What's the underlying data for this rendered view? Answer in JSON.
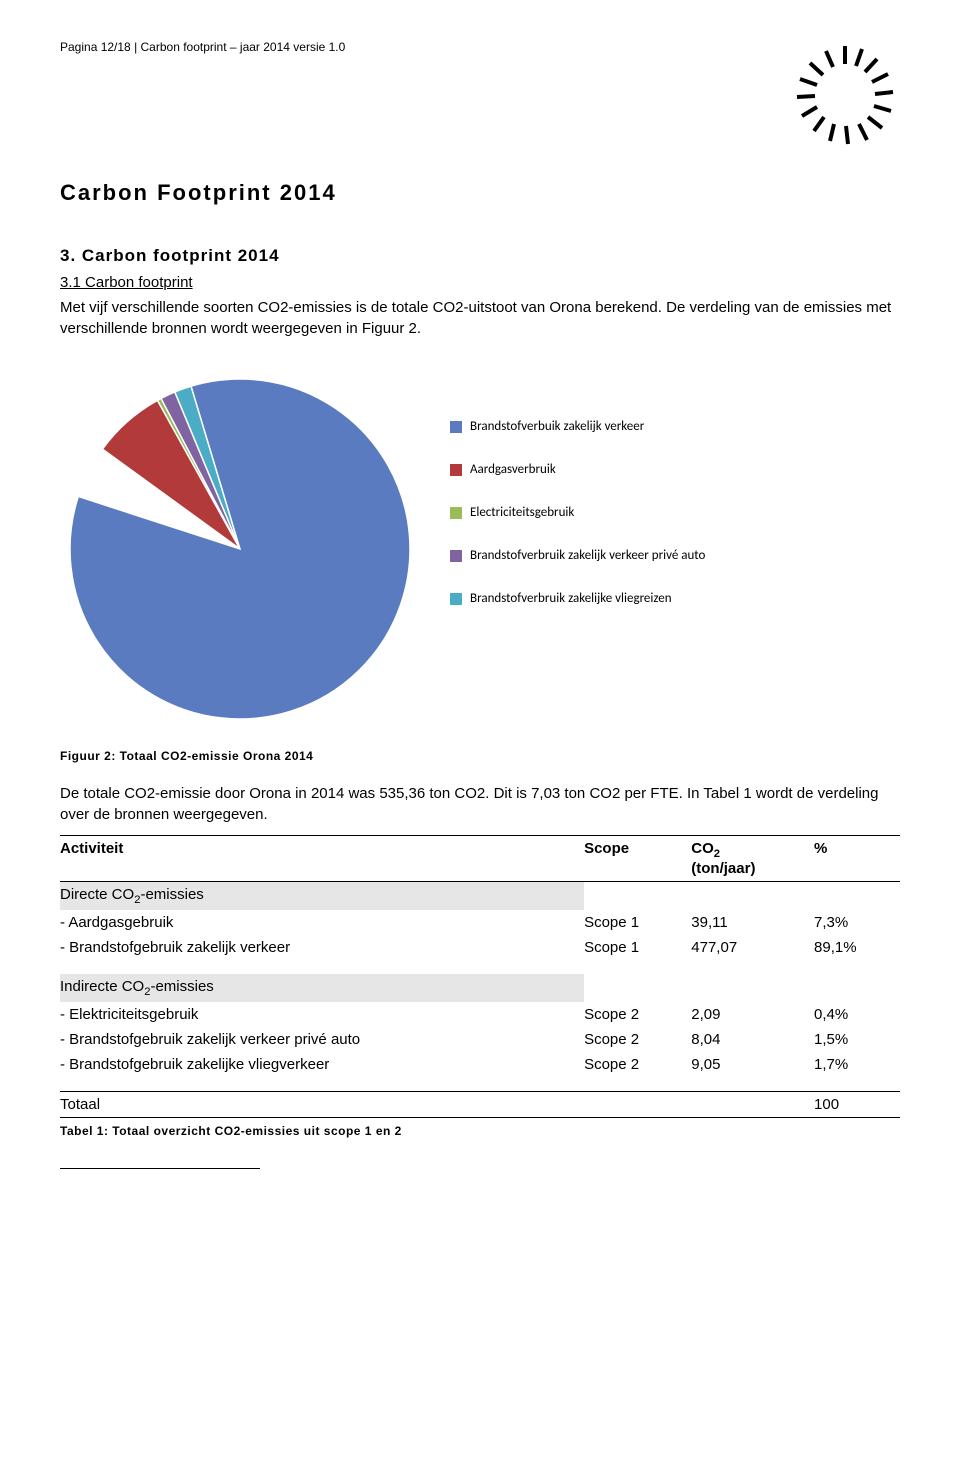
{
  "header": {
    "pagina": "Pagina 12/18 | Carbon footprint – jaar 2014 versie 1.0"
  },
  "doc_title": "Carbon Footprint 2014",
  "section_title": "3. Carbon footprint 2014",
  "subsection_title": "3.1 Carbon footprint",
  "intro_para": "Met vijf verschillende soorten CO2-emissies is de totale CO2-uitstoot van Orona berekend. De verdeling van de emissies met verschillende bronnen wordt weergegeven in Figuur 2.",
  "pie_chart": {
    "type": "pie",
    "background_color": "#ffffff",
    "start_angle_deg": -72,
    "gap_deg": 18,
    "radius": 170,
    "stroke": "#ffffff",
    "stroke_width": 1.5,
    "legend_font_family": "Calibri",
    "legend_fontsize": 13,
    "slices": [
      {
        "label": "Brandstofverbuik zakelijk verkeer",
        "value": 89.1,
        "color": "#5a7bbf"
      },
      {
        "label": "Aardgasverbruik",
        "value": 7.3,
        "color": "#b33a3a"
      },
      {
        "label": "Electriciteitsgebruik",
        "value": 0.4,
        "color": "#9bbb59"
      },
      {
        "label": "Brandstofverbruik zakelijk verkeer privé auto",
        "value": 1.5,
        "color": "#8064a2"
      },
      {
        "label": "Brandstofverbruik zakelijke vliegreizen",
        "value": 1.7,
        "color": "#4bacc6"
      }
    ]
  },
  "figure_caption": "Figuur 2: Totaal CO2-emissie Orona 2014",
  "result_para": "De totale CO2-emissie door Orona in 2014 was 535,36 ton CO2. Dit is 7,03 ton CO2 per FTE. In Tabel 1 wordt de verdeling over de bronnen weergegeven.",
  "table": {
    "columns": [
      "Activiteit",
      "Scope",
      "CO₂ (ton/jaar)",
      "%"
    ],
    "col_header_activiteit": "Activiteit",
    "col_header_scope": "Scope",
    "col_header_co2_line1": "CO",
    "col_header_co2_sub": "2",
    "col_header_co2_line2": "(ton/jaar)",
    "col_header_pct": "%",
    "section1_label": "Directe CO₂-emissies",
    "section1_label_plain": "Directe CO",
    "section2_label_plain": "Indirecte CO",
    "emissies_suffix": "-emissies",
    "section1_rows": [
      {
        "act": "- Aardgasgebruik",
        "scope": "Scope 1",
        "co2": "39,11",
        "pct": "7,3%"
      },
      {
        "act": "- Brandstofgebruik zakelijk verkeer",
        "scope": "Scope 1",
        "co2": "477,07",
        "pct": "89,1%"
      }
    ],
    "section2_label": "Indirecte CO₂-emissies",
    "section2_rows": [
      {
        "act": "- Elektriciteitsgebruik",
        "scope": "Scope 2",
        "co2": "2,09",
        "pct": "0,4%"
      },
      {
        "act": "- Brandstofgebruik zakelijk verkeer privé auto",
        "scope": "Scope 2",
        "co2": "8,04",
        "pct": "1,5%"
      },
      {
        "act": "- Brandstofgebruik zakelijke vliegverkeer",
        "scope": "Scope 2",
        "co2": "9,05",
        "pct": "1,7%"
      }
    ],
    "total_label": "Totaal",
    "total_pct": "100"
  },
  "table_caption": "Tabel 1: Totaal overzicht CO2-emissies uit scope 1 en 2"
}
